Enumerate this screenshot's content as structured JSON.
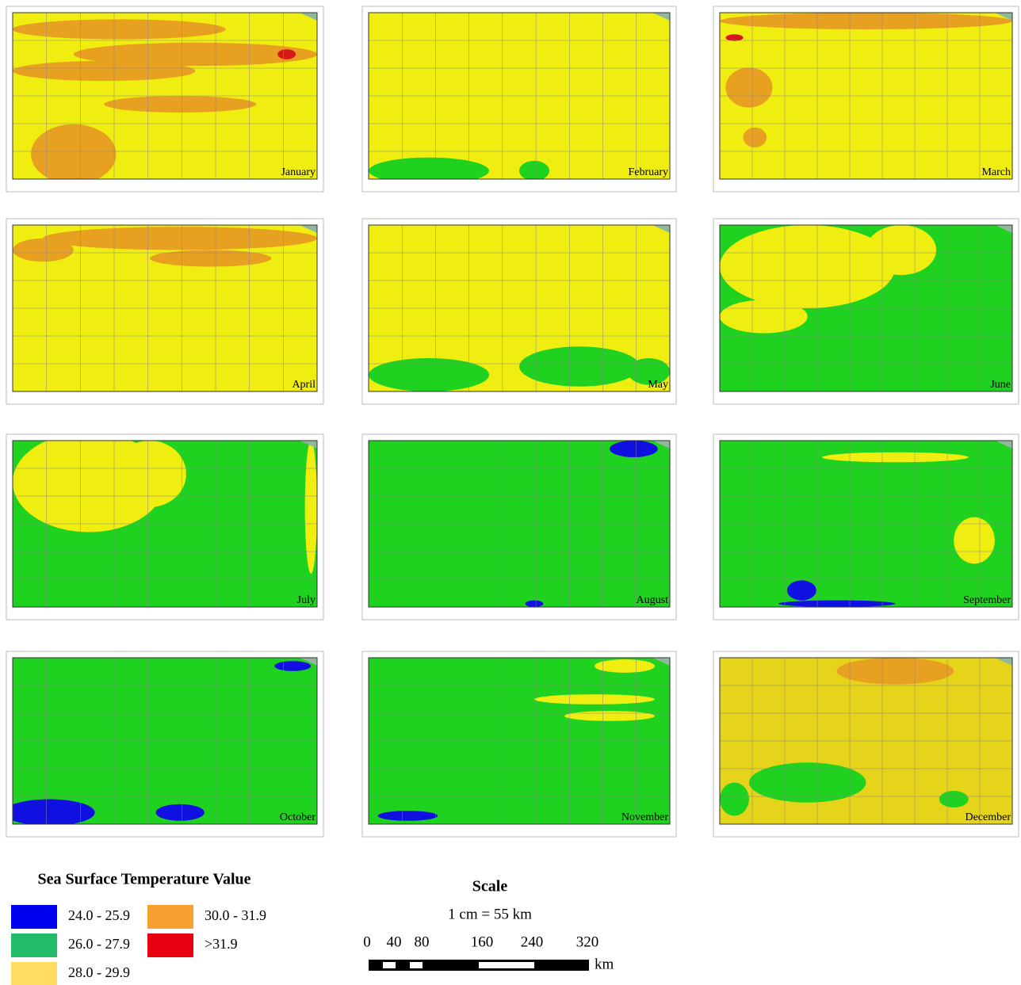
{
  "panels": [
    {
      "label": "January"
    },
    {
      "label": "February"
    },
    {
      "label": "March"
    },
    {
      "label": "April"
    },
    {
      "label": "May"
    },
    {
      "label": "June"
    },
    {
      "label": "July"
    },
    {
      "label": "August"
    },
    {
      "label": "September"
    },
    {
      "label": "October"
    },
    {
      "label": "November"
    },
    {
      "label": "December"
    }
  ],
  "legend": {
    "title": "Sea Surface Temperature Value",
    "items": [
      {
        "label": "24.0 - 25.9",
        "color": "#0000ee"
      },
      {
        "label": "30.0 - 31.9",
        "color": "#f7a030"
      },
      {
        "label": "26.0 - 27.9",
        "color": "#22bb6a"
      },
      {
        "label": ">31.9",
        "color": "#e80010"
      },
      {
        "label": "28.0 - 29.9",
        "color": "#fedd60"
      }
    ]
  },
  "scale": {
    "title": "Scale",
    "ratio": "1 cm = 55 km",
    "ticks": [
      "0",
      "40",
      "80",
      "160",
      "240",
      "320"
    ],
    "unit": "km"
  }
}
